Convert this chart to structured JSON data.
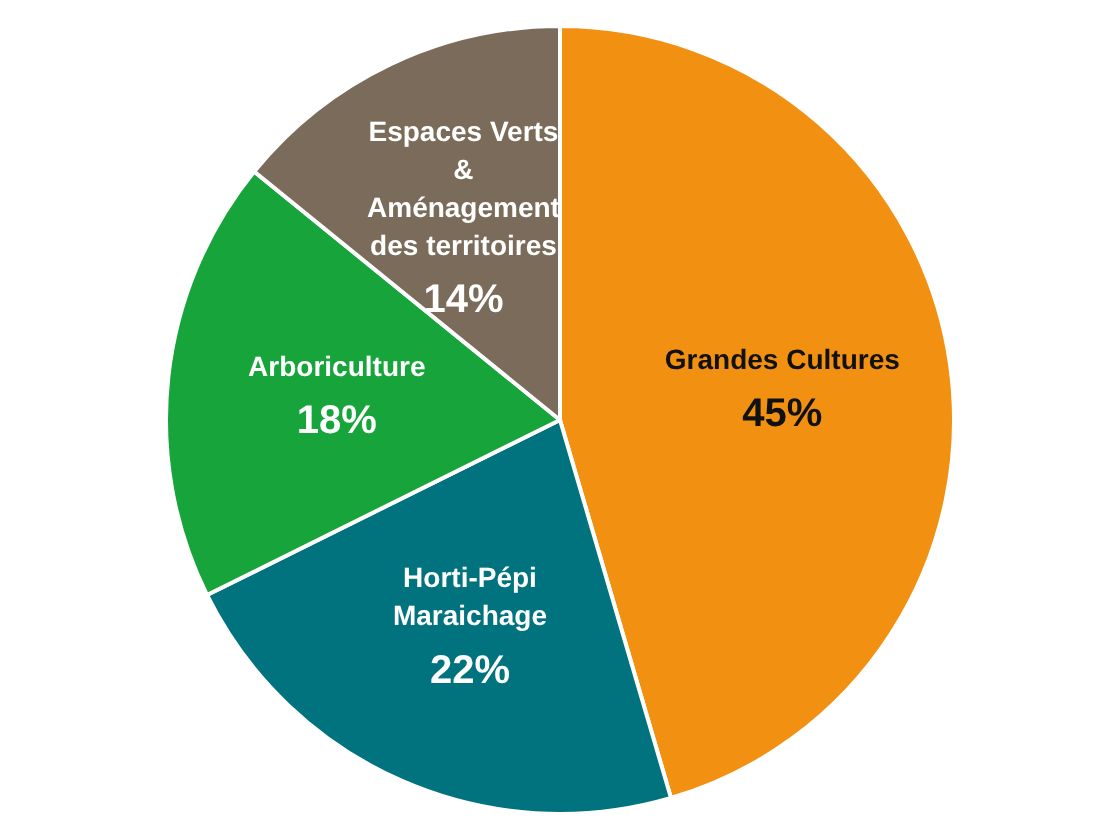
{
  "chart_data": {
    "type": "pie",
    "categories": [
      "Grandes Cultures",
      "Horti-Pépi\nMaraichage",
      "Arboriculture",
      "Espaces Verts\n&\nAménagement\ndes territoires"
    ],
    "values": [
      45,
      22,
      18,
      14
    ],
    "colors": [
      "#f29111",
      "#00737e",
      "#17a43b",
      "#7b6b5a"
    ],
    "value_labels": [
      "45%",
      "22%",
      "18%",
      "14%"
    ],
    "legend": false
  }
}
